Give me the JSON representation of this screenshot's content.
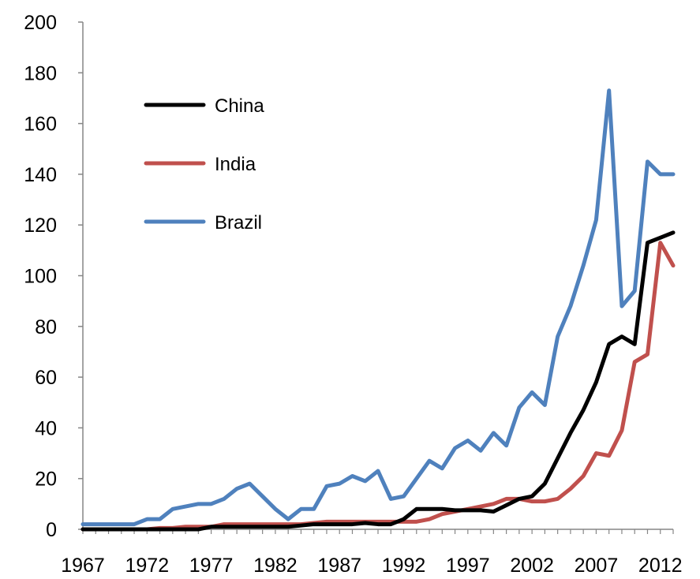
{
  "chart_data": {
    "type": "line",
    "x": [
      1967,
      1968,
      1969,
      1970,
      1971,
      1972,
      1973,
      1974,
      1975,
      1976,
      1977,
      1978,
      1979,
      1980,
      1981,
      1982,
      1983,
      1984,
      1985,
      1986,
      1987,
      1988,
      1989,
      1990,
      1991,
      1992,
      1993,
      1994,
      1995,
      1996,
      1997,
      1998,
      1999,
      2000,
      2001,
      2002,
      2003,
      2004,
      2005,
      2006,
      2007,
      2008,
      2009,
      2010,
      2011,
      2012,
      2013
    ],
    "x_ticks": [
      "1967",
      "1972",
      "1977",
      "1982",
      "1987",
      "1992",
      "1997",
      "2002",
      "2007",
      "2012"
    ],
    "y_ticks": [
      "0",
      "20",
      "40",
      "60",
      "80",
      "100",
      "120",
      "140",
      "160",
      "180",
      "200"
    ],
    "ylim": [
      0,
      200
    ],
    "series": [
      {
        "name": "China",
        "color": "#000000",
        "values": [
          0,
          0,
          0,
          0,
          0,
          0,
          0,
          0,
          0,
          0,
          1,
          1,
          1,
          1,
          1,
          1,
          1,
          1.5,
          2,
          2,
          2,
          2,
          2.5,
          2,
          2,
          4,
          8,
          8,
          8,
          7.5,
          7.5,
          7.5,
          7,
          9.5,
          12,
          13,
          18,
          28,
          38,
          47,
          58,
          73,
          76,
          73,
          113,
          115,
          117
        ]
      },
      {
        "name": "India",
        "color": "#c0504d",
        "values": [
          0,
          0,
          0,
          0,
          0,
          0,
          0.5,
          0.5,
          1,
          1,
          1,
          2,
          2,
          2,
          2,
          2,
          2,
          2,
          2.5,
          3,
          3,
          3,
          3,
          3,
          3,
          3,
          3,
          4,
          6,
          7,
          8,
          9,
          10,
          12,
          12,
          11,
          11,
          12,
          16,
          21,
          30,
          29,
          39,
          66,
          69,
          113,
          104
        ]
      },
      {
        "name": "Brazil",
        "color": "#4f81bd",
        "values": [
          2,
          2,
          2,
          2,
          2,
          4,
          4,
          8,
          9,
          10,
          10,
          12,
          16,
          18,
          13,
          8,
          4,
          8,
          8,
          17,
          18,
          21,
          19,
          23,
          12,
          13,
          20,
          27,
          24,
          32,
          35,
          31,
          38,
          33,
          48,
          54,
          49,
          76,
          88,
          104,
          122,
          173,
          88,
          94,
          145,
          140,
          140
        ]
      }
    ],
    "legend_position": "top-left",
    "grid": false
  }
}
